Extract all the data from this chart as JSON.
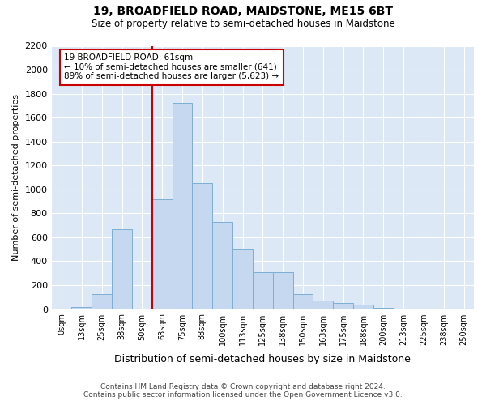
{
  "title1": "19, BROADFIELD ROAD, MAIDSTONE, ME15 6BT",
  "title2": "Size of property relative to semi-detached houses in Maidstone",
  "xlabel": "Distribution of semi-detached houses by size in Maidstone",
  "ylabel": "Number of semi-detached properties",
  "footer1": "Contains HM Land Registry data © Crown copyright and database right 2024.",
  "footer2": "Contains public sector information licensed under the Open Government Licence v3.0.",
  "bar_labels": [
    "0sqm",
    "13sqm",
    "25sqm",
    "38sqm",
    "50sqm",
    "63sqm",
    "75sqm",
    "88sqm",
    "100sqm",
    "113sqm",
    "125sqm",
    "138sqm",
    "150sqm",
    "163sqm",
    "175sqm",
    "188sqm",
    "200sqm",
    "213sqm",
    "225sqm",
    "238sqm",
    "250sqm"
  ],
  "bar_values": [
    0,
    20,
    125,
    670,
    0,
    920,
    1725,
    1050,
    730,
    500,
    305,
    305,
    125,
    70,
    50,
    35,
    10,
    5,
    3,
    2,
    0
  ],
  "bar_color": "#c5d8f0",
  "bar_edge_color": "#7bafd4",
  "annotation_title": "19 BROADFIELD ROAD: 61sqm",
  "annotation_line1": "← 10% of semi-detached houses are smaller (641)",
  "annotation_line2": "89% of semi-detached houses are larger (5,623) →",
  "annotation_box_color": "#ffffff",
  "annotation_box_edge": "#cc0000",
  "vline_color": "#cc0000",
  "ylim": [
    0,
    2200
  ],
  "yticks": [
    0,
    200,
    400,
    600,
    800,
    1000,
    1200,
    1400,
    1600,
    1800,
    2000,
    2200
  ],
  "bg_color": "#dce8f5",
  "grid_color": "#ffffff"
}
